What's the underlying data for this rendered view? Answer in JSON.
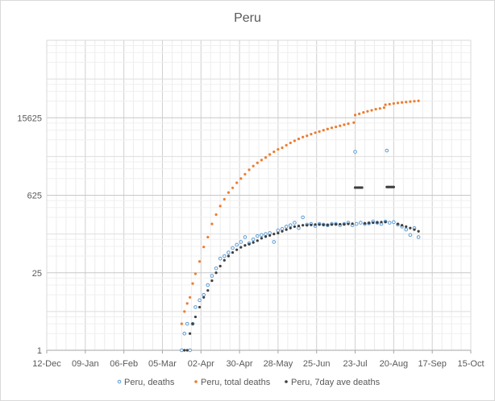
{
  "chart_data": {
    "type": "scatter",
    "title": "Peru",
    "xlabel": "",
    "ylabel": "",
    "y_scale": "log5",
    "ylim": [
      1,
      390625
    ],
    "y_ticks": [
      "1",
      "25",
      "625",
      "15625"
    ],
    "x_ticks": [
      "12-Dec",
      "09-Jan",
      "06-Feb",
      "05-Mar",
      "02-Apr",
      "30-Apr",
      "28-May",
      "25-Jun",
      "23-Jul",
      "20-Aug",
      "17-Sep",
      "15-Oct"
    ],
    "legend_position": "bottom",
    "grid": true,
    "series": [
      {
        "name": "Peru, deaths",
        "color": "#5B9BD5",
        "marker": "open-circle",
        "x": [
          "2020-03-19",
          "2020-03-21",
          "2020-03-23",
          "2020-03-25",
          "2020-03-27",
          "2020-03-29",
          "2020-04-01",
          "2020-04-04",
          "2020-04-07",
          "2020-04-10",
          "2020-04-13",
          "2020-04-16",
          "2020-04-19",
          "2020-04-22",
          "2020-04-25",
          "2020-04-28",
          "2020-05-01",
          "2020-05-04",
          "2020-05-07",
          "2020-05-10",
          "2020-05-13",
          "2020-05-16",
          "2020-05-19",
          "2020-05-22",
          "2020-05-25",
          "2020-05-28",
          "2020-05-31",
          "2020-06-03",
          "2020-06-06",
          "2020-06-09",
          "2020-06-12",
          "2020-06-15",
          "2020-06-18",
          "2020-06-21",
          "2020-06-24",
          "2020-06-27",
          "2020-06-30",
          "2020-07-03",
          "2020-07-06",
          "2020-07-09",
          "2020-07-12",
          "2020-07-15",
          "2020-07-18",
          "2020-07-21",
          "2020-07-23",
          "2020-07-24",
          "2020-07-27",
          "2020-07-30",
          "2020-08-02",
          "2020-08-05",
          "2020-08-08",
          "2020-08-11",
          "2020-08-14",
          "2020-08-15",
          "2020-08-17",
          "2020-08-20",
          "2020-08-23",
          "2020-08-26",
          "2020-08-29",
          "2020-09-01",
          "2020-09-04",
          "2020-09-07"
        ],
        "y": [
          1,
          2,
          3,
          1,
          3,
          6,
          8,
          10,
          15,
          22,
          30,
          45,
          50,
          58,
          70,
          80,
          90,
          110,
          85,
          100,
          115,
          120,
          125,
          130,
          90,
          145,
          155,
          170,
          180,
          200,
          160,
          250,
          185,
          190,
          175,
          190,
          185,
          180,
          190,
          190,
          180,
          190,
          200,
          180,
          3800,
          190,
          200,
          190,
          195,
          210,
          200,
          190,
          210,
          4000,
          200,
          205,
          185,
          170,
          150,
          120,
          160,
          110
        ]
      },
      {
        "name": "Peru, total deaths",
        "color": "#ED7D31",
        "marker": "dot",
        "x": [
          "2020-03-19",
          "2020-03-21",
          "2020-03-23",
          "2020-03-25",
          "2020-03-27",
          "2020-03-29",
          "2020-04-01",
          "2020-04-04",
          "2020-04-07",
          "2020-04-10",
          "2020-04-13",
          "2020-04-16",
          "2020-04-19",
          "2020-04-22",
          "2020-04-25",
          "2020-04-28",
          "2020-05-01",
          "2020-05-04",
          "2020-05-07",
          "2020-05-10",
          "2020-05-13",
          "2020-05-16",
          "2020-05-19",
          "2020-05-22",
          "2020-05-25",
          "2020-05-28",
          "2020-05-31",
          "2020-06-03",
          "2020-06-06",
          "2020-06-09",
          "2020-06-12",
          "2020-06-15",
          "2020-06-18",
          "2020-06-21",
          "2020-06-24",
          "2020-06-27",
          "2020-06-30",
          "2020-07-03",
          "2020-07-06",
          "2020-07-09",
          "2020-07-12",
          "2020-07-15",
          "2020-07-18",
          "2020-07-22",
          "2020-07-23",
          "2020-07-26",
          "2020-07-29",
          "2020-08-01",
          "2020-08-04",
          "2020-08-07",
          "2020-08-10",
          "2020-08-13",
          "2020-08-14",
          "2020-08-17",
          "2020-08-20",
          "2020-08-23",
          "2020-08-26",
          "2020-08-29",
          "2020-09-01",
          "2020-09-04",
          "2020-09-07"
        ],
        "y": [
          3,
          5,
          7,
          9,
          16,
          24,
          40,
          73,
          110,
          190,
          280,
          400,
          530,
          700,
          850,
          1050,
          1250,
          1500,
          1800,
          2100,
          2400,
          2700,
          3000,
          3400,
          3800,
          4200,
          4500,
          5000,
          5500,
          6000,
          6500,
          7000,
          7400,
          7900,
          8400,
          8800,
          9300,
          9800,
          10300,
          10700,
          11200,
          11700,
          12200,
          12800,
          17500,
          18400,
          19500,
          20400,
          21300,
          22300,
          23000,
          23800,
          26800,
          27500,
          28300,
          28900,
          29500,
          30000,
          30600,
          31100,
          31500
        ]
      },
      {
        "name": "Peru, 7day ave deaths",
        "color": "#3F3F3F",
        "marker": "dot",
        "x": [
          "2020-03-21",
          "2020-03-23",
          "2020-03-25",
          "2020-03-27",
          "2020-03-29",
          "2020-04-01",
          "2020-04-04",
          "2020-04-07",
          "2020-04-10",
          "2020-04-13",
          "2020-04-16",
          "2020-04-19",
          "2020-04-22",
          "2020-04-25",
          "2020-04-28",
          "2020-05-01",
          "2020-05-04",
          "2020-05-07",
          "2020-05-10",
          "2020-05-13",
          "2020-05-16",
          "2020-05-19",
          "2020-05-22",
          "2020-05-25",
          "2020-05-28",
          "2020-05-31",
          "2020-06-03",
          "2020-06-06",
          "2020-06-09",
          "2020-06-12",
          "2020-06-15",
          "2020-06-18",
          "2020-06-21",
          "2020-06-24",
          "2020-06-27",
          "2020-06-30",
          "2020-07-03",
          "2020-07-06",
          "2020-07-09",
          "2020-07-12",
          "2020-07-15",
          "2020-07-18",
          "2020-07-21",
          "2020-07-23",
          "2020-07-24",
          "2020-07-25",
          "2020-07-26",
          "2020-07-27",
          "2020-07-28",
          "2020-07-30",
          "2020-08-02",
          "2020-08-05",
          "2020-08-08",
          "2020-08-11",
          "2020-08-14",
          "2020-08-15",
          "2020-08-16",
          "2020-08-17",
          "2020-08-18",
          "2020-08-19",
          "2020-08-20",
          "2020-08-23",
          "2020-08-26",
          "2020-08-29",
          "2020-09-01",
          "2020-09-04",
          "2020-09-07"
        ],
        "y": [
          1,
          1,
          2,
          3,
          4,
          6,
          9,
          12,
          18,
          25,
          33,
          42,
          50,
          58,
          65,
          72,
          78,
          82,
          88,
          95,
          105,
          112,
          118,
          125,
          130,
          140,
          150,
          160,
          170,
          175,
          180,
          180,
          182,
          185,
          185,
          183,
          182,
          185,
          187,
          188,
          187,
          190,
          192,
          860,
          860,
          860,
          860,
          860,
          860,
          195,
          198,
          200,
          202,
          205,
          206,
          880,
          880,
          880,
          880,
          880,
          880,
          190,
          180,
          170,
          160,
          150,
          140
        ]
      }
    ]
  }
}
